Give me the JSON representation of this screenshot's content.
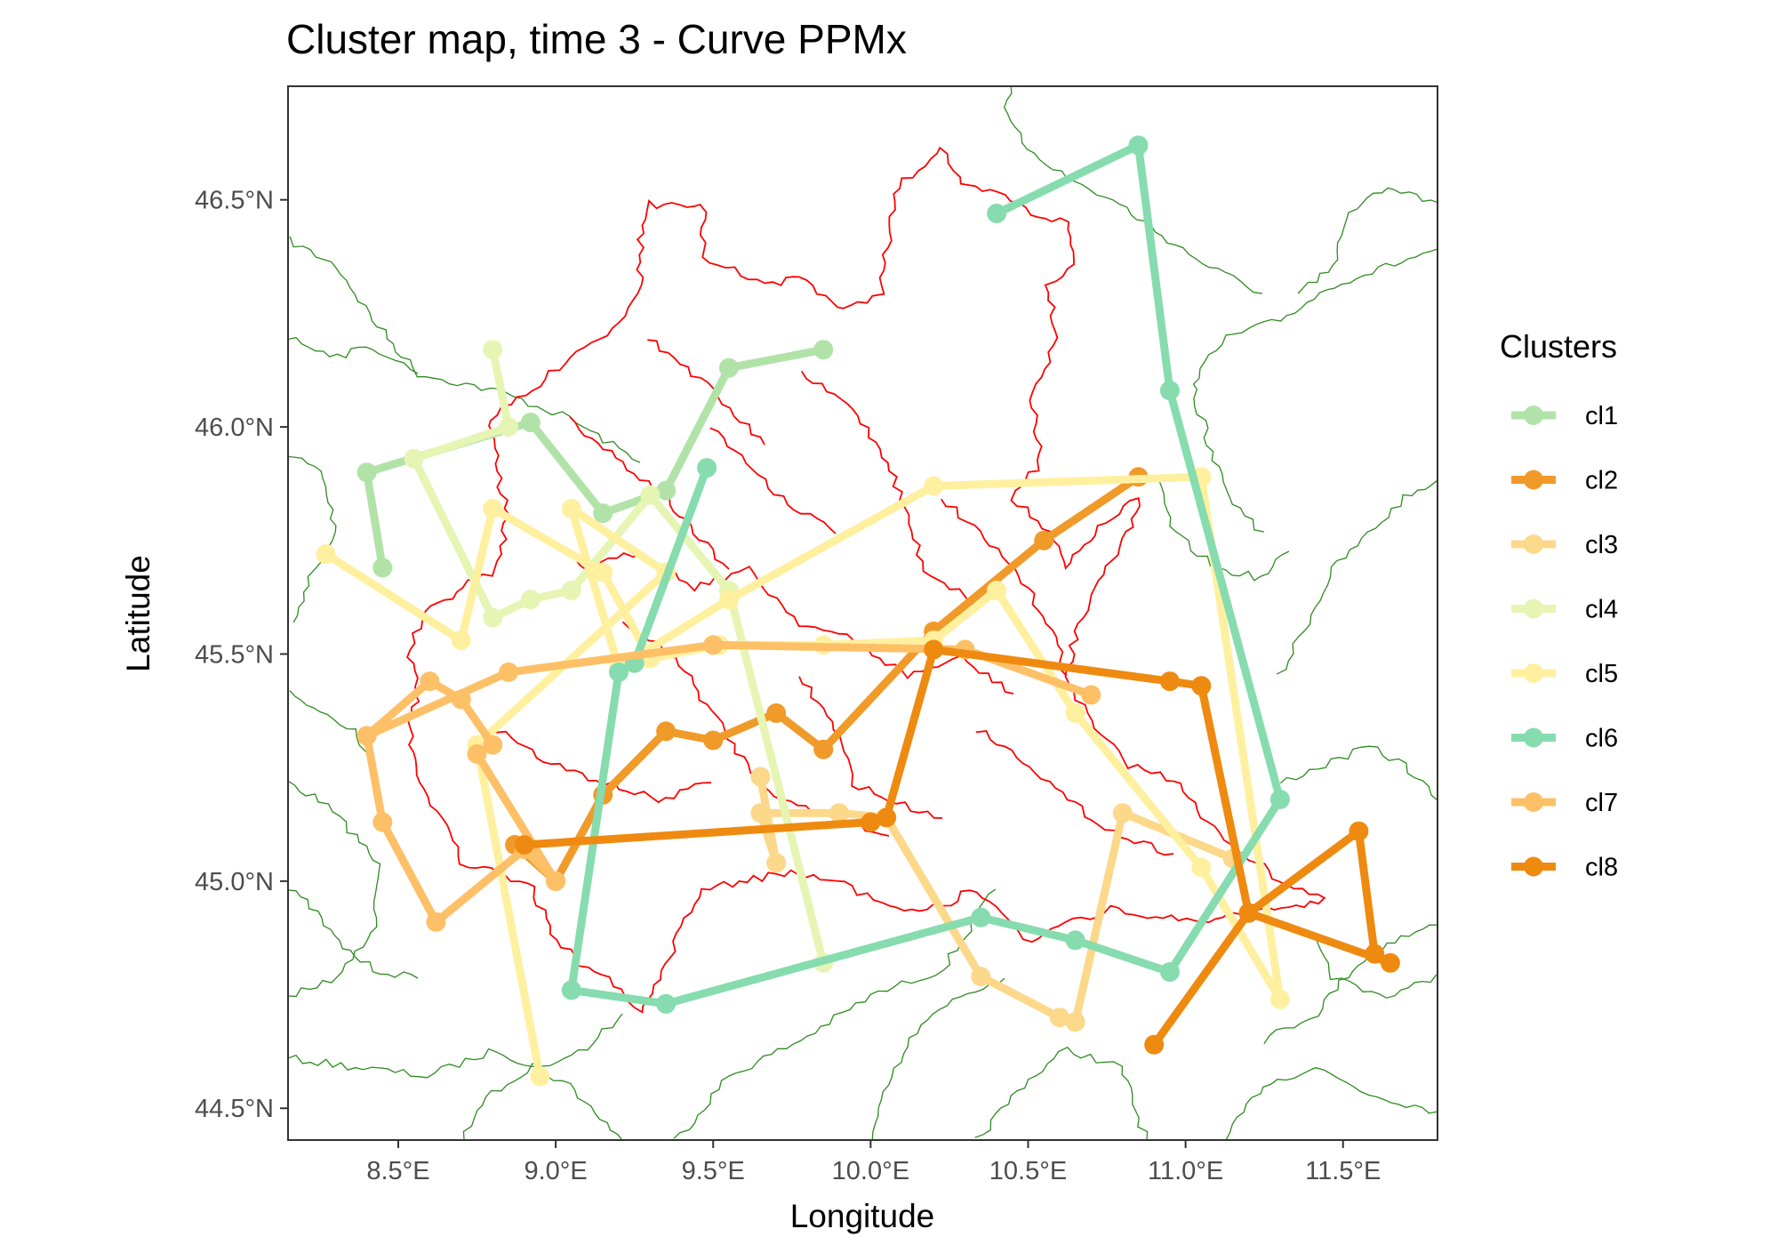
{
  "chart_data": {
    "type": "line",
    "title": "Cluster map, time 3 - Curve PPMx",
    "xlabel": "Longitude",
    "ylabel": "Latitude",
    "xlim": [
      8.15,
      11.8
    ],
    "ylim": [
      44.43,
      46.75
    ],
    "x_ticks": [
      8.5,
      9.0,
      9.5,
      10.0,
      10.5,
      11.0,
      11.5
    ],
    "x_tick_labels": [
      "8.5°E",
      "9.0°E",
      "9.5°E",
      "10.0°E",
      "10.5°E",
      "11.0°E",
      "11.5°E"
    ],
    "y_ticks": [
      44.5,
      45.0,
      45.5,
      46.0,
      46.5
    ],
    "y_tick_labels": [
      "44.5°N",
      "45.0°N",
      "45.5°N",
      "46.0°N",
      "46.5°N"
    ],
    "grid": false,
    "legend": {
      "title": "Clusters",
      "position": "right"
    },
    "series": [
      {
        "name": "cl1",
        "color": "#b1e3a9",
        "points": [
          [
            8.45,
            45.69
          ],
          [
            8.4,
            45.9
          ],
          [
            8.92,
            46.01
          ],
          [
            9.15,
            45.81
          ],
          [
            9.35,
            45.86
          ],
          [
            9.55,
            46.13
          ],
          [
            9.85,
            46.17
          ]
        ]
      },
      {
        "name": "cl2",
        "color": "#f09a2a",
        "points": [
          [
            8.87,
            45.08
          ],
          [
            9.0,
            45.0
          ],
          [
            9.15,
            45.19
          ],
          [
            9.35,
            45.33
          ],
          [
            9.5,
            45.31
          ],
          [
            9.7,
            45.37
          ],
          [
            9.85,
            45.29
          ],
          [
            10.2,
            45.55
          ],
          [
            10.55,
            45.75
          ],
          [
            10.85,
            45.89
          ]
        ]
      },
      {
        "name": "cl3",
        "color": "#fcd88a",
        "points": [
          [
            9.65,
            45.23
          ],
          [
            9.7,
            45.04
          ],
          [
            9.65,
            45.15
          ],
          [
            9.9,
            45.15
          ],
          [
            10.05,
            45.14
          ],
          [
            10.35,
            44.79
          ],
          [
            10.6,
            44.7
          ],
          [
            10.65,
            44.69
          ],
          [
            10.8,
            45.15
          ],
          [
            11.15,
            45.05
          ]
        ]
      },
      {
        "name": "cl4",
        "color": "#e6f5b3",
        "points": [
          [
            9.85,
            44.82
          ],
          [
            9.55,
            45.64
          ],
          [
            9.3,
            45.85
          ],
          [
            9.05,
            45.64
          ],
          [
            8.92,
            45.62
          ],
          [
            8.8,
            45.58
          ],
          [
            8.55,
            45.93
          ],
          [
            8.85,
            46.0
          ],
          [
            8.8,
            46.17
          ]
        ]
      },
      {
        "name": "cl5",
        "color": "#fff0a0",
        "points": [
          [
            8.27,
            45.72
          ],
          [
            8.7,
            45.53
          ],
          [
            8.8,
            45.82
          ],
          [
            9.15,
            45.68
          ],
          [
            9.3,
            45.49
          ],
          [
            9.52,
            45.52
          ],
          [
            9.85,
            45.52
          ],
          [
            10.2,
            45.53
          ],
          [
            10.4,
            45.64
          ],
          [
            10.65,
            45.37
          ],
          [
            11.05,
            45.03
          ],
          [
            11.3,
            44.74
          ],
          [
            11.05,
            45.89
          ],
          [
            10.2,
            45.87
          ],
          [
            9.55,
            45.62
          ],
          [
            9.2,
            45.47
          ],
          [
            9.05,
            45.82
          ],
          [
            9.35,
            45.68
          ],
          [
            8.75,
            45.3
          ],
          [
            8.95,
            44.57
          ]
        ]
      },
      {
        "name": "cl6",
        "color": "#86dcae",
        "points": [
          [
            10.4,
            46.47
          ],
          [
            10.85,
            46.62
          ],
          [
            10.95,
            46.08
          ],
          [
            11.3,
            45.18
          ],
          [
            10.95,
            44.8
          ],
          [
            10.65,
            44.87
          ],
          [
            10.35,
            44.92
          ],
          [
            9.35,
            44.73
          ],
          [
            9.05,
            44.76
          ],
          [
            9.2,
            45.46
          ],
          [
            9.25,
            45.48
          ],
          [
            9.48,
            45.91
          ]
        ]
      },
      {
        "name": "cl7",
        "color": "#fdc067",
        "points": [
          [
            8.4,
            45.32
          ],
          [
            8.45,
            45.13
          ],
          [
            8.62,
            44.91
          ],
          [
            8.9,
            45.07
          ],
          [
            9.0,
            45.0
          ],
          [
            8.75,
            45.28
          ],
          [
            8.8,
            45.3
          ],
          [
            8.7,
            45.4
          ],
          [
            8.6,
            45.44
          ],
          [
            8.4,
            45.32
          ],
          [
            8.85,
            45.46
          ],
          [
            9.5,
            45.52
          ],
          [
            10.3,
            45.51
          ],
          [
            10.7,
            45.41
          ]
        ]
      },
      {
        "name": "cl8",
        "color": "#ef8a10",
        "points": [
          [
            8.9,
            45.08
          ],
          [
            10.0,
            45.13
          ],
          [
            10.05,
            45.14
          ],
          [
            10.2,
            45.51
          ],
          [
            10.95,
            45.44
          ],
          [
            11.05,
            45.43
          ],
          [
            11.2,
            44.93
          ],
          [
            11.55,
            45.11
          ],
          [
            11.6,
            44.84
          ],
          [
            11.65,
            44.82
          ],
          [
            11.2,
            44.93
          ],
          [
            10.9,
            44.64
          ]
        ]
      }
    ]
  },
  "map": {
    "region_border_color": "#ff0000",
    "province_border_color": "#2e8b20"
  }
}
